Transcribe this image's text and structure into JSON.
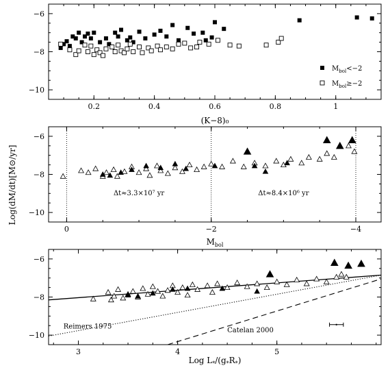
{
  "y_axis_label": "Log(dM/dt)[M⊙/yr]",
  "chart_data": [
    {
      "type": "scatter",
      "xlabel": "(K−8)₀",
      "xlim": [
        0.05,
        1.15
      ],
      "ylim": [
        -10.5,
        -5.5
      ],
      "xticks": [
        0.2,
        0.4,
        0.6,
        0.8,
        1.0
      ],
      "xtick_labels": [
        "0.2",
        "0.4",
        "0.6",
        "0.8",
        "1"
      ],
      "yticks": [
        -6,
        -8,
        -10
      ],
      "ytick_labels": [
        "−6",
        "−8",
        "−10"
      ],
      "legend_position": "bottom-right",
      "series": [
        {
          "name": "M_bol<−2",
          "legend_label": "M",
          "legend_sub": "bol",
          "legend_tail": "<−2",
          "marker": "filled-square",
          "points": [
            [
              0.09,
              -7.8
            ],
            [
              0.1,
              -7.6
            ],
            [
              0.11,
              -7.45
            ],
            [
              0.12,
              -7.7
            ],
            [
              0.13,
              -7.2
            ],
            [
              0.14,
              -7.3
            ],
            [
              0.15,
              -7.0
            ],
            [
              0.16,
              -7.5
            ],
            [
              0.17,
              -7.2
            ],
            [
              0.18,
              -7.05
            ],
            [
              0.19,
              -7.3
            ],
            [
              0.2,
              -7.0
            ],
            [
              0.22,
              -7.5
            ],
            [
              0.24,
              -7.3
            ],
            [
              0.25,
              -7.6
            ],
            [
              0.27,
              -7.0
            ],
            [
              0.28,
              -7.2
            ],
            [
              0.29,
              -6.85
            ],
            [
              0.31,
              -7.4
            ],
            [
              0.32,
              -7.25
            ],
            [
              0.33,
              -7.5
            ],
            [
              0.35,
              -6.95
            ],
            [
              0.37,
              -7.3
            ],
            [
              0.4,
              -7.1
            ],
            [
              0.42,
              -6.9
            ],
            [
              0.44,
              -7.2
            ],
            [
              0.46,
              -6.6
            ],
            [
              0.48,
              -7.4
            ],
            [
              0.51,
              -6.75
            ],
            [
              0.53,
              -7.05
            ],
            [
              0.56,
              -7.0
            ],
            [
              0.57,
              -7.4
            ],
            [
              0.59,
              -7.25
            ],
            [
              0.6,
              -6.45
            ],
            [
              0.63,
              -6.8
            ],
            [
              0.88,
              -6.35
            ],
            [
              1.07,
              -6.2
            ],
            [
              1.12,
              -6.25
            ]
          ]
        },
        {
          "name": "M_bol≥−2",
          "legend_label": "M",
          "legend_sub": "bol",
          "legend_tail": "≥−2",
          "marker": "open-square",
          "points": [
            [
              0.09,
              -7.6
            ],
            [
              0.12,
              -7.9
            ],
            [
              0.14,
              -8.15
            ],
            [
              0.15,
              -7.95
            ],
            [
              0.17,
              -7.65
            ],
            [
              0.18,
              -8.0
            ],
            [
              0.19,
              -7.7
            ],
            [
              0.2,
              -8.15
            ],
            [
              0.21,
              -7.9
            ],
            [
              0.22,
              -8.05
            ],
            [
              0.23,
              -8.2
            ],
            [
              0.24,
              -7.85
            ],
            [
              0.26,
              -7.75
            ],
            [
              0.27,
              -8.0
            ],
            [
              0.28,
              -7.65
            ],
            [
              0.29,
              -7.95
            ],
            [
              0.3,
              -8.05
            ],
            [
              0.31,
              -7.85
            ],
            [
              0.32,
              -7.6
            ],
            [
              0.33,
              -8.0
            ],
            [
              0.35,
              -7.75
            ],
            [
              0.36,
              -8.05
            ],
            [
              0.38,
              -7.8
            ],
            [
              0.39,
              -7.95
            ],
            [
              0.41,
              -7.7
            ],
            [
              0.42,
              -7.9
            ],
            [
              0.44,
              -7.75
            ],
            [
              0.46,
              -7.85
            ],
            [
              0.48,
              -7.6
            ],
            [
              0.5,
              -7.55
            ],
            [
              0.52,
              -7.8
            ],
            [
              0.54,
              -7.75
            ],
            [
              0.55,
              -7.5
            ],
            [
              0.58,
              -7.6
            ],
            [
              0.61,
              -7.4
            ],
            [
              0.65,
              -7.65
            ],
            [
              0.68,
              -7.7
            ],
            [
              0.77,
              -7.65
            ],
            [
              0.81,
              -7.5
            ],
            [
              0.82,
              -7.3
            ]
          ]
        }
      ]
    },
    {
      "type": "scatter",
      "xlabel_main": "M",
      "xlabel_sub": "bol",
      "xlim": [
        0.25,
        -4.35
      ],
      "ylim": [
        -10.5,
        -5.5
      ],
      "xticks": [
        0,
        -2,
        -4
      ],
      "xtick_labels": [
        "0",
        "−2",
        "−4"
      ],
      "yticks": [
        -6,
        -8,
        -10
      ],
      "ytick_labels": [
        "−6",
        "−8",
        "−10"
      ],
      "dotted_vlines": [
        0,
        -2,
        -4
      ],
      "annotations": [
        {
          "text": "Δt≈3.3×10⁷ yr",
          "x": -1.0,
          "y": -9.1
        },
        {
          "text": "Δt≈8.4×10⁶ yr",
          "x": -3.0,
          "y": -9.1
        }
      ],
      "series": [
        {
          "name": "open-triangles",
          "marker": "open-triangle",
          "points": [
            [
              0.05,
              -8.1
            ],
            [
              -0.2,
              -7.8
            ],
            [
              -0.3,
              -7.9
            ],
            [
              -0.4,
              -7.7
            ],
            [
              -0.5,
              -8.1
            ],
            [
              -0.55,
              -7.9
            ],
            [
              -0.65,
              -7.75
            ],
            [
              -0.7,
              -8.1
            ],
            [
              -0.8,
              -7.85
            ],
            [
              -0.9,
              -7.6
            ],
            [
              -1.0,
              -7.9
            ],
            [
              -1.1,
              -7.7
            ],
            [
              -1.15,
              -8.05
            ],
            [
              -1.25,
              -7.55
            ],
            [
              -1.3,
              -7.8
            ],
            [
              -1.4,
              -7.95
            ],
            [
              -1.5,
              -7.65
            ],
            [
              -1.6,
              -7.85
            ],
            [
              -1.7,
              -7.5
            ],
            [
              -1.8,
              -7.75
            ],
            [
              -1.9,
              -7.6
            ],
            [
              -2.0,
              -7.45
            ],
            [
              -2.15,
              -7.6
            ],
            [
              -2.3,
              -7.3
            ],
            [
              -2.45,
              -7.6
            ],
            [
              -2.6,
              -7.4
            ],
            [
              -2.75,
              -7.55
            ],
            [
              -2.9,
              -7.3
            ],
            [
              -3.0,
              -7.5
            ],
            [
              -3.1,
              -7.2
            ],
            [
              -3.25,
              -7.4
            ],
            [
              -3.35,
              -7.1
            ],
            [
              -3.5,
              -7.2
            ],
            [
              -3.6,
              -6.9
            ],
            [
              -3.7,
              -7.1
            ],
            [
              -3.9,
              -6.5
            ],
            [
              -3.98,
              -6.8
            ]
          ]
        },
        {
          "name": "filled-triangles",
          "marker": "filled-triangle",
          "points": [
            [
              -0.5,
              -8.0
            ],
            [
              -0.6,
              -8.05
            ],
            [
              -0.75,
              -7.9
            ],
            [
              -0.9,
              -7.75
            ],
            [
              -1.1,
              -7.55
            ],
            [
              -1.3,
              -7.65
            ],
            [
              -1.5,
              -7.45
            ],
            [
              -1.65,
              -7.7
            ],
            [
              -2.05,
              -7.55
            ],
            [
              -2.5,
              -6.8
            ],
            [
              -2.6,
              -7.55
            ],
            [
              -2.75,
              -7.85
            ],
            [
              -3.05,
              -7.4
            ],
            [
              -3.6,
              -6.2
            ],
            [
              -3.78,
              -6.5
            ],
            [
              -3.95,
              -6.2
            ]
          ]
        }
      ]
    },
    {
      "type": "scatter",
      "xlabel_main": "Log L",
      "xlabel_sub1": "*",
      "xlabel_mid": "/(g",
      "xlabel_sub2": "*",
      "xlabel_mid2": "R",
      "xlabel_sub3": "*",
      "xlabel_tail": ")",
      "xlim": [
        2.7,
        6.05
      ],
      "ylim": [
        -10.5,
        -5.5
      ],
      "xticks": [
        3,
        4,
        5
      ],
      "xtick_labels": [
        "3",
        "4",
        "5"
      ],
      "yticks": [
        -6,
        -8,
        -10
      ],
      "ytick_labels": [
        "−6",
        "−8",
        "−10"
      ],
      "annotations": [
        {
          "text": "Reimers 1975",
          "x": 2.85,
          "y": -9.65
        },
        {
          "text": "Catelan 2000",
          "x": 4.5,
          "y": -9.85
        }
      ],
      "lines": [
        {
          "name": "solid",
          "style": "solid",
          "points": [
            [
              2.7,
              -8.15
            ],
            [
              6.05,
              -6.85
            ]
          ]
        },
        {
          "name": "Reimers 1975",
          "style": "dotted",
          "points": [
            [
              2.7,
              -10.05
            ],
            [
              6.05,
              -6.85
            ]
          ]
        },
        {
          "name": "Catelan 2000",
          "style": "dashed",
          "points": [
            [
              3.9,
              -10.5
            ],
            [
              6.05,
              -7.05
            ]
          ]
        }
      ],
      "error_bar": {
        "x": 5.6,
        "y": -9.45,
        "xerr": 0.07
      },
      "series": [
        {
          "name": "open-triangles",
          "marker": "open-triangle",
          "points": [
            [
              3.15,
              -8.1
            ],
            [
              3.3,
              -7.75
            ],
            [
              3.33,
              -8.15
            ],
            [
              3.36,
              -7.95
            ],
            [
              3.4,
              -7.6
            ],
            [
              3.45,
              -8.05
            ],
            [
              3.5,
              -7.85
            ],
            [
              3.55,
              -7.7
            ],
            [
              3.6,
              -8.0
            ],
            [
              3.65,
              -7.55
            ],
            [
              3.7,
              -7.85
            ],
            [
              3.75,
              -7.45
            ],
            [
              3.8,
              -7.7
            ],
            [
              3.85,
              -7.95
            ],
            [
              3.9,
              -7.65
            ],
            [
              3.95,
              -7.4
            ],
            [
              4.0,
              -7.75
            ],
            [
              4.05,
              -7.5
            ],
            [
              4.1,
              -7.9
            ],
            [
              4.15,
              -7.35
            ],
            [
              4.2,
              -7.6
            ],
            [
              4.3,
              -7.4
            ],
            [
              4.35,
              -7.75
            ],
            [
              4.4,
              -7.3
            ],
            [
              4.5,
              -7.5
            ],
            [
              4.6,
              -7.25
            ],
            [
              4.7,
              -7.45
            ],
            [
              4.8,
              -7.3
            ],
            [
              4.9,
              -7.5
            ],
            [
              5.0,
              -7.2
            ],
            [
              5.1,
              -7.35
            ],
            [
              5.2,
              -7.1
            ],
            [
              5.3,
              -7.3
            ],
            [
              5.4,
              -7.05
            ],
            [
              5.5,
              -7.2
            ],
            [
              5.6,
              -6.95
            ],
            [
              5.65,
              -6.8
            ],
            [
              5.7,
              -6.95
            ]
          ]
        },
        {
          "name": "filled-triangles",
          "marker": "filled-triangle",
          "points": [
            [
              3.5,
              -7.9
            ],
            [
              3.6,
              -7.95
            ],
            [
              3.75,
              -7.8
            ],
            [
              3.95,
              -7.6
            ],
            [
              4.1,
              -7.55
            ],
            [
              4.45,
              -7.55
            ],
            [
              4.8,
              -7.7
            ],
            [
              4.93,
              -6.8
            ],
            [
              5.58,
              -6.2
            ],
            [
              5.72,
              -6.35
            ],
            [
              5.85,
              -6.25
            ]
          ]
        }
      ]
    }
  ]
}
